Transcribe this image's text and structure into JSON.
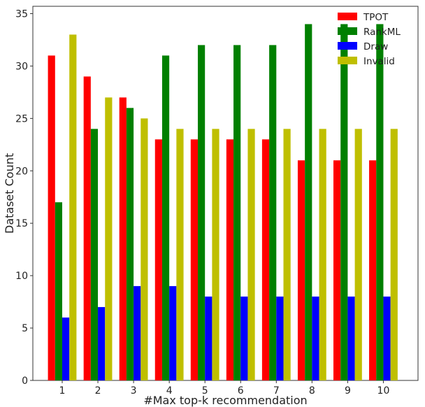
{
  "chart_data": {
    "type": "bar",
    "categories": [
      "1",
      "2",
      "3",
      "4",
      "5",
      "6",
      "7",
      "8",
      "9",
      "10"
    ],
    "series": [
      {
        "name": "TPOT",
        "color": "#ff0000",
        "values": [
          31,
          29,
          27,
          23,
          23,
          23,
          23,
          21,
          21,
          21
        ]
      },
      {
        "name": "RankML",
        "color": "#008000",
        "values": [
          17,
          24,
          26,
          31,
          32,
          32,
          32,
          34,
          34,
          34
        ]
      },
      {
        "name": "Draw",
        "color": "#0000ff",
        "values": [
          6,
          7,
          9,
          9,
          8,
          8,
          8,
          8,
          8,
          8
        ]
      },
      {
        "name": "Invalid",
        "color": "#bfbf00",
        "values": [
          33,
          27,
          25,
          24,
          24,
          24,
          24,
          24,
          24,
          24
        ]
      }
    ],
    "title": "",
    "xlabel": "#Max top-k recommendation",
    "ylabel": "Dataset Count",
    "ylim": [
      0,
      35.7
    ],
    "yticks": [
      "0",
      "5",
      "10",
      "15",
      "20",
      "25",
      "30",
      "35"
    ],
    "grid": false,
    "legend_position": "top-right"
  }
}
